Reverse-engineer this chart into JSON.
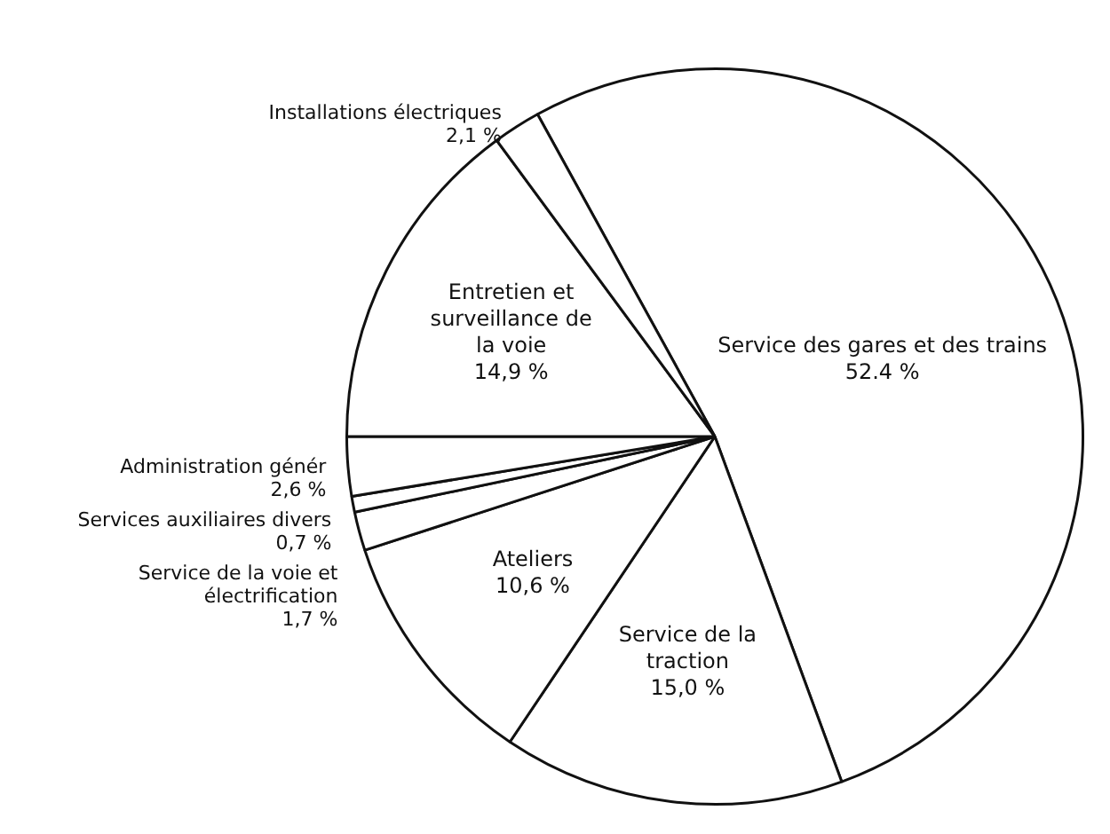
{
  "chart_data": {
    "type": "pie",
    "categories": [
      "Service des gares et des trains",
      "Service de la traction",
      "Ateliers",
      "Service de la voie et électrification",
      "Services auxiliaires divers",
      "Administration génér",
      "Entretien et surveillance de la voie",
      "Installations électriques"
    ],
    "values": [
      52.4,
      15.0,
      10.6,
      1.7,
      0.7,
      2.6,
      14.9,
      2.1
    ],
    "value_labels": [
      "52.4 %",
      "15,0 %",
      "10,6 %",
      "1,7 %",
      "0,7 %",
      "2,6 %",
      "14,9 %",
      "2,1 %"
    ],
    "colors": [
      "#ffffff",
      "#ffffff",
      "#ffffff",
      "#ffffff",
      "#ffffff",
      "#ffffff",
      "#ffffff",
      "#ffffff"
    ],
    "legend": false
  }
}
